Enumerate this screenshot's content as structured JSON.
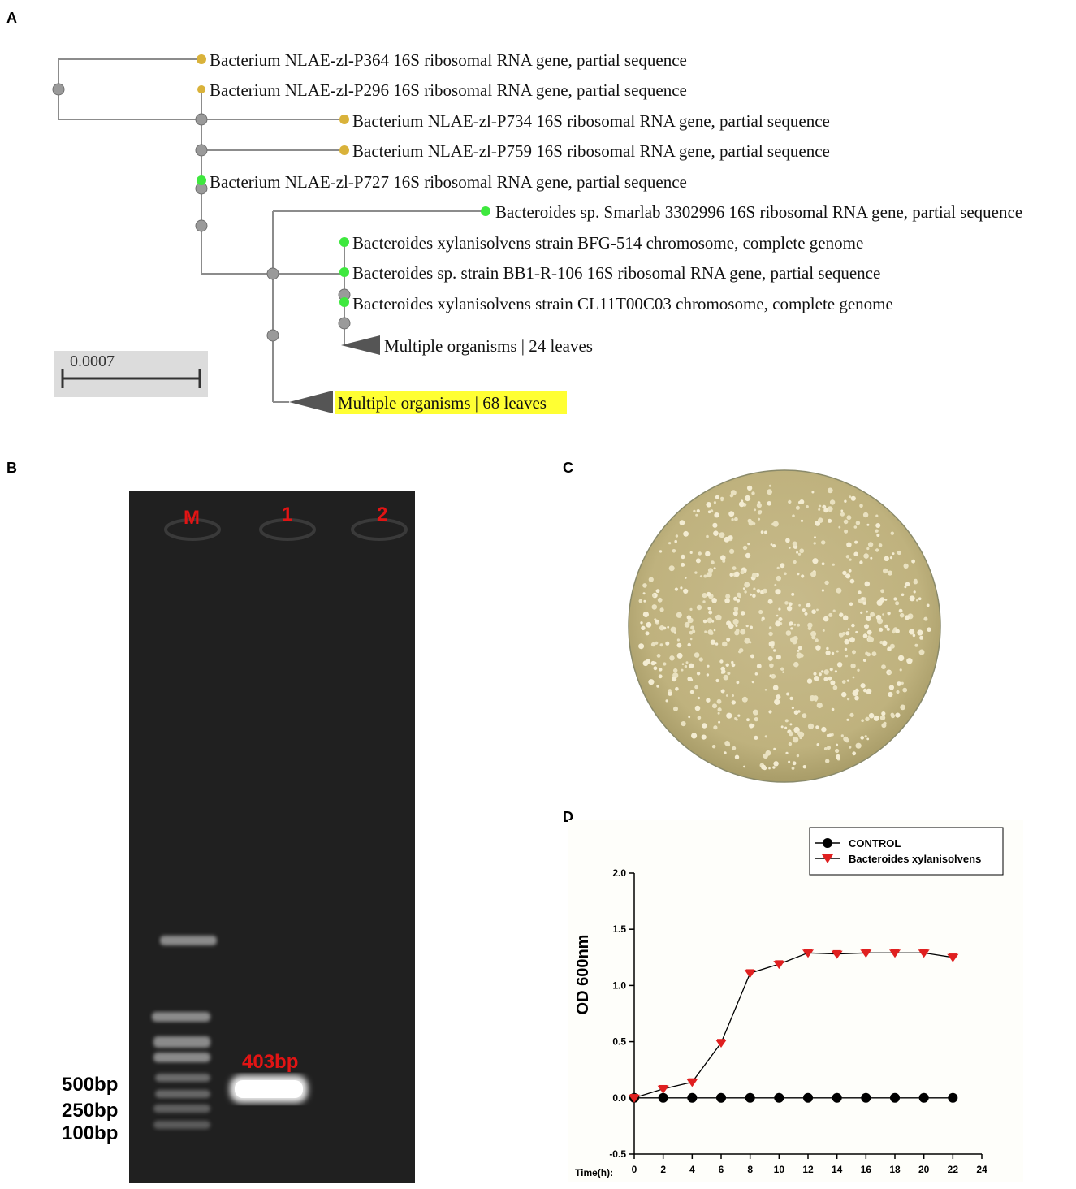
{
  "panels": {
    "a": "A",
    "b": "B",
    "c": "C",
    "d": "D"
  },
  "tree": {
    "leaves": [
      "Bacterium NLAE-zl-P364 16S ribosomal RNA gene, partial sequence",
      "Bacterium NLAE-zl-P296 16S ribosomal RNA gene, partial sequence",
      "Bacterium NLAE-zl-P734 16S ribosomal RNA gene, partial sequence",
      "Bacterium NLAE-zl-P759 16S ribosomal RNA gene, partial sequence",
      "Bacterium NLAE-zl-P727 16S ribosomal RNA gene, partial sequence",
      "Bacteroides sp. Smarlab 3302996 16S ribosomal RNA gene, partial sequence",
      "Bacteroides xylanisolvens strain BFG-514 chromosome, complete genome",
      "Bacteroides sp. strain BB1-R-106 16S ribosomal RNA gene, partial sequence",
      "Bacteroides xylanisolvens strain CL11T00C03 chromosome, complete genome"
    ],
    "collapsed": [
      "Multiple organisms | 24 leaves",
      "Multiple organisms | 68 leaves"
    ],
    "scale": "0.0007",
    "colors": {
      "branch": "#8c8c8c",
      "node": "#9a9a9a",
      "gold": "#d9b23a",
      "green": "#3ee83e",
      "highlight": "#ffff33"
    }
  },
  "gel": {
    "lanes": [
      "M",
      "1",
      "2"
    ],
    "product": "403bp",
    "markers": [
      "500bp",
      "250bp",
      "100bp"
    ],
    "colors": {
      "label": "#e21414",
      "background": "#202020"
    }
  },
  "chart_data": {
    "type": "line",
    "xlabel": "Time(h):",
    "ylabel": "OD 600nm",
    "xlim": [
      0,
      24
    ],
    "ylim": [
      -0.5,
      2.0
    ],
    "xticks": [
      "0",
      "2",
      "4",
      "6",
      "8",
      "10",
      "12",
      "14",
      "16",
      "18",
      "20",
      "22",
      "24"
    ],
    "yticks": [
      "-0.5",
      "0.0",
      "0.5",
      "1.0",
      "1.5",
      "2.0"
    ],
    "x": [
      0,
      2,
      4,
      6,
      8,
      10,
      12,
      14,
      16,
      18,
      20,
      22
    ],
    "series": [
      {
        "name": "CONTROL",
        "marker": "circle",
        "color": "#000000",
        "values": [
          0,
          0,
          0,
          0,
          0,
          0,
          0,
          0,
          0,
          0,
          0,
          0
        ]
      },
      {
        "name": "Bacteroides xylanisolvens",
        "marker": "triangle-down",
        "color": "#e02020",
        "values": [
          0.0,
          0.08,
          0.14,
          0.49,
          1.11,
          1.19,
          1.29,
          1.28,
          1.29,
          1.29,
          1.29,
          1.25
        ]
      }
    ],
    "legend": "top-right"
  }
}
